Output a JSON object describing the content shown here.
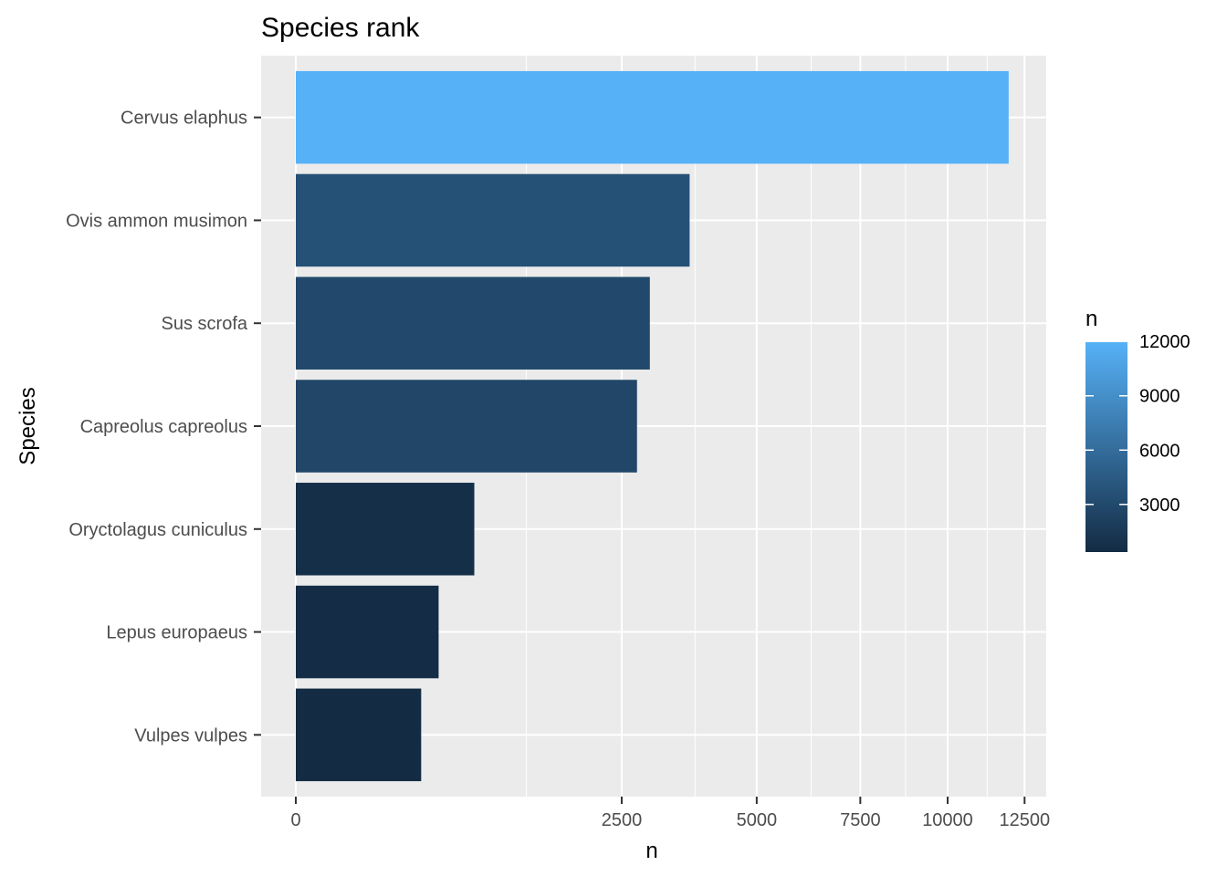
{
  "chart_data": {
    "type": "bar",
    "orientation": "horizontal",
    "title": "Species rank",
    "xlabel": "n",
    "ylabel": "Species",
    "x_scale": "sqrt",
    "xlim": [
      0,
      12900
    ],
    "x_ticks": [
      0,
      2500,
      5000,
      7500,
      10000,
      12500
    ],
    "x_tick_labels": [
      "0",
      "2500",
      "5000",
      "7500",
      "10000",
      "12500"
    ],
    "categories": [
      "Cervus elaphus",
      "Ovis ammon musimon",
      "Sus scrofa",
      "Capreolus capreolus",
      "Oryctolagus cuniculus",
      "Lepus europaeus",
      "Vulpes vulpes"
    ],
    "values": [
      11960,
      3650,
      2950,
      2740,
      750,
      480,
      370
    ],
    "grid": true,
    "legend": {
      "title": "n",
      "placement": "right",
      "type": "colorbar",
      "min": 370,
      "max": 11960,
      "breaks": [
        12000,
        9000,
        6000,
        3000
      ],
      "break_labels": [
        "12000",
        "9000",
        "6000",
        "3000"
      ],
      "color_low": "#132B43",
      "color_high": "#56B1F7"
    }
  }
}
